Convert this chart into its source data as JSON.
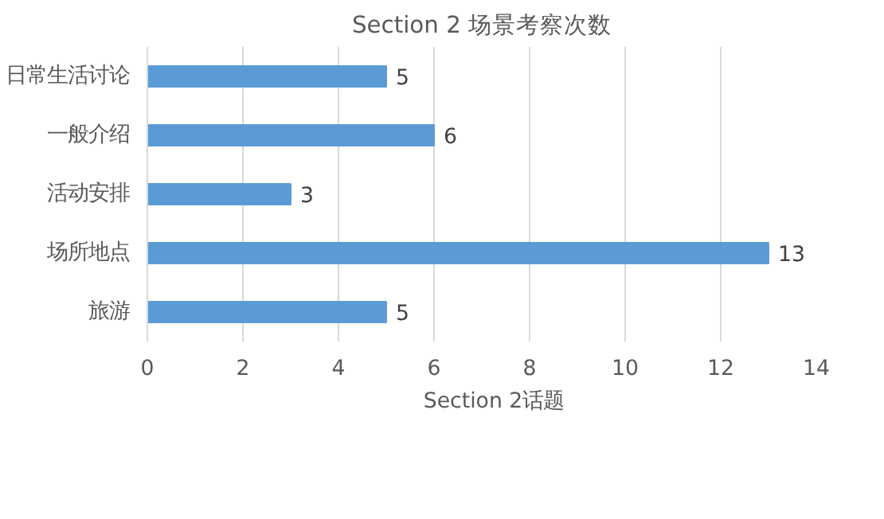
{
  "chart_data": {
    "type": "bar",
    "orientation": "horizontal",
    "title": "Section 2 场景考察次数",
    "categories": [
      "日常生活讨论",
      "一般介绍",
      "活动安排",
      "场所地点",
      "旅游"
    ],
    "series": [
      {
        "name": "Section 2话题",
        "color": "#5b9bd5",
        "values": [
          5,
          6,
          3,
          13,
          5
        ]
      }
    ],
    "xlim": [
      0,
      14
    ],
    "xticks": [
      0,
      2,
      4,
      6,
      8,
      10,
      12,
      14
    ],
    "grid": "x",
    "legend": "bottom",
    "data_labels": true
  }
}
